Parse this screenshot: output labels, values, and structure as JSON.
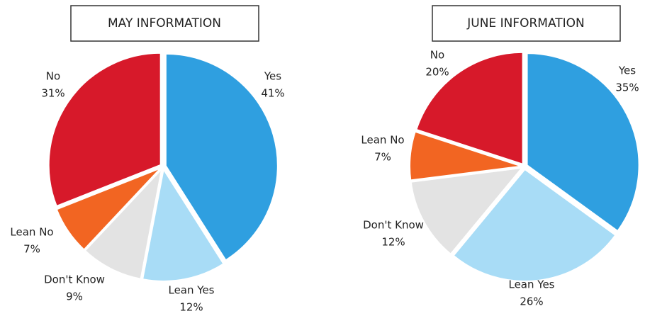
{
  "chart_data": [
    {
      "type": "pie",
      "title": "MAY INFORMATION",
      "categories": [
        "Yes",
        "Lean Yes",
        "Don't Know",
        "Lean No",
        "No"
      ],
      "values": [
        41,
        12,
        9,
        7,
        31
      ],
      "value_labels": [
        "41%",
        "12%",
        "9%",
        "7%",
        "31%"
      ],
      "colors": [
        "#2f9fe0",
        "#a8dcf6",
        "#e3e3e3",
        "#f26522",
        "#d7192a"
      ]
    },
    {
      "type": "pie",
      "title": "JUNE INFORMATION",
      "categories": [
        "Yes",
        "Lean Yes",
        "Don't Know",
        "Lean No",
        "No"
      ],
      "values": [
        35,
        26,
        12,
        7,
        20
      ],
      "value_labels": [
        "35%",
        "26%",
        "12%",
        "7%",
        "20%"
      ],
      "colors": [
        "#2f9fe0",
        "#a8dcf6",
        "#e3e3e3",
        "#f26522",
        "#d7192a"
      ]
    }
  ]
}
